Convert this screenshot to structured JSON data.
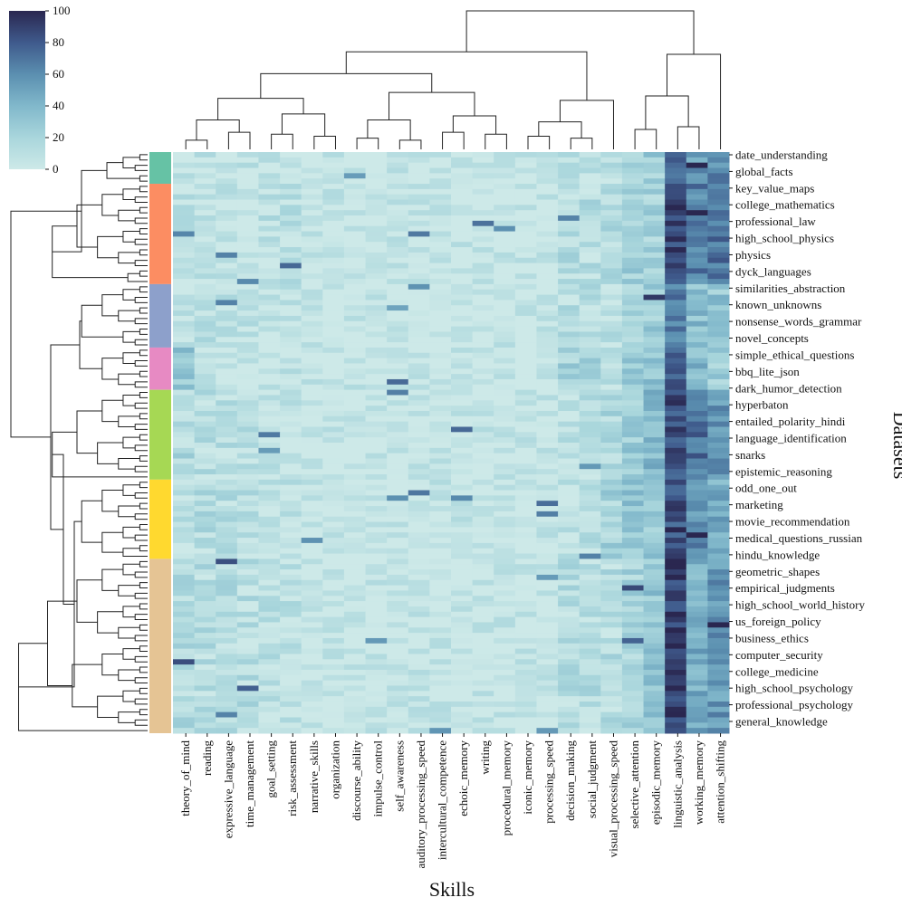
{
  "chart_data": {
    "type": "heatmap",
    "title": "",
    "xlabel": "Skills",
    "ylabel": "Datasets",
    "colorbar": {
      "ticks": [
        0,
        20,
        40,
        60,
        80,
        100
      ],
      "range": [
        0,
        100
      ],
      "colormap": "light-teal-to-navy"
    },
    "x_tick_labels": [
      "theory_of_mind",
      "reading",
      "expressive_language",
      "time_management",
      "goal_setting",
      "risk_assessment",
      "narrative_skills",
      "organization",
      "discourse_ability",
      "impulse_control",
      "self_awareness",
      "auditory_processing_speed",
      "intercultural_competence",
      "echoic_memory",
      "writing",
      "procedural_memory",
      "iconic_memory",
      "processing_speed",
      "decision_making",
      "social_judgment",
      "visual_processing_speed",
      "selective_attention",
      "episodic_memory",
      "linguistic_analysis",
      "working_memory",
      "attention_shifting"
    ],
    "y_tick_labels": [
      "date_understanding",
      "global_facts",
      "key_value_maps",
      "college_mathematics",
      "professional_law",
      "high_school_physics",
      "physics",
      "dyck_languages",
      "similarities_abstraction",
      "known_unknowns",
      "nonsense_words_grammar",
      "novel_concepts",
      "simple_ethical_questions",
      "bbq_lite_json",
      "dark_humor_detection",
      "hyperbaton",
      "entailed_polarity_hindi",
      "language_identification",
      "snarks",
      "epistemic_reasoning",
      "odd_one_out",
      "marketing",
      "movie_recommendation",
      "medical_questions_russian",
      "hindu_knowledge",
      "geometric_shapes",
      "empirical_judgments",
      "high_school_world_history",
      "us_foreign_policy",
      "business_ethics",
      "computer_security",
      "college_medicine",
      "high_school_psychology",
      "professional_psychology",
      "general_knowledge"
    ],
    "row_clusters": [
      {
        "color": "#66c2a5",
        "rows": 6
      },
      {
        "color": "#fc8d62",
        "rows": 19
      },
      {
        "color": "#8da0cb",
        "rows": 12
      },
      {
        "color": "#e78ac3",
        "rows": 8
      },
      {
        "color": "#a6d854",
        "rows": 17
      },
      {
        "color": "#ffd92f",
        "rows": 15
      },
      {
        "color": "#e5c494",
        "rows": 33
      }
    ]
  }
}
